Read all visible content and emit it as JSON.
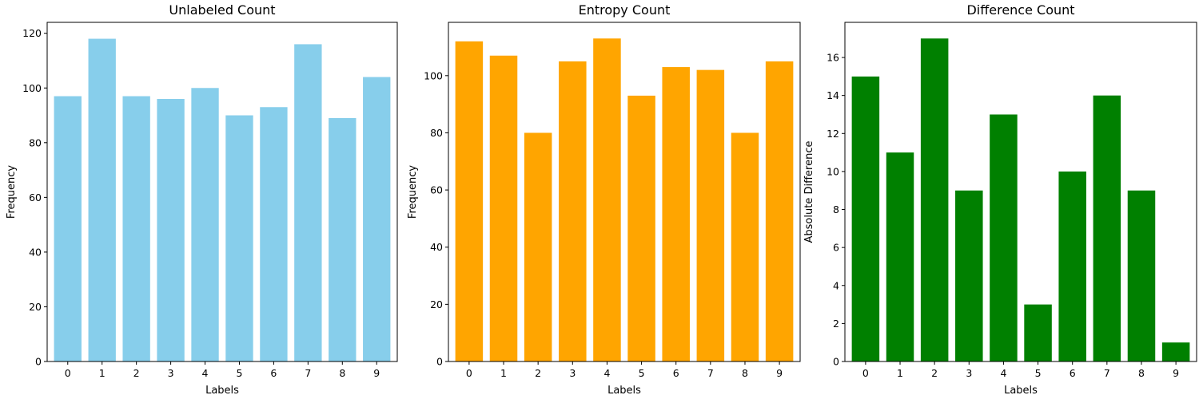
{
  "chart_data": [
    {
      "type": "bar",
      "title": "Unlabeled Count",
      "xlabel": "Labels",
      "ylabel": "Frequency",
      "categories": [
        "0",
        "1",
        "2",
        "3",
        "4",
        "5",
        "6",
        "7",
        "8",
        "9"
      ],
      "values": [
        97,
        118,
        97,
        96,
        100,
        90,
        93,
        116,
        89,
        104
      ],
      "ylim": [
        0,
        124
      ],
      "yticks": [
        0,
        20,
        40,
        60,
        80,
        100,
        120
      ],
      "color": "#87ceeb",
      "grid": false
    },
    {
      "type": "bar",
      "title": "Entropy Count",
      "xlabel": "Labels",
      "ylabel": "Frequency",
      "categories": [
        "0",
        "1",
        "2",
        "3",
        "4",
        "5",
        "6",
        "7",
        "8",
        "9"
      ],
      "values": [
        112,
        107,
        80,
        105,
        113,
        93,
        103,
        102,
        80,
        105
      ],
      "ylim": [
        0,
        118.65
      ],
      "yticks": [
        0,
        20,
        40,
        60,
        80,
        100
      ],
      "color": "#ffa500",
      "grid": false
    },
    {
      "type": "bar",
      "title": "Difference Count",
      "xlabel": "Labels",
      "ylabel": "Absolute Difference",
      "categories": [
        "0",
        "1",
        "2",
        "3",
        "4",
        "5",
        "6",
        "7",
        "8",
        "9"
      ],
      "values": [
        15,
        11,
        17,
        9,
        13,
        3,
        10,
        14,
        9,
        1
      ],
      "ylim": [
        0,
        17.85
      ],
      "yticks": [
        0,
        2,
        4,
        6,
        8,
        10,
        12,
        14,
        16
      ],
      "color": "#008000",
      "grid": false
    }
  ]
}
